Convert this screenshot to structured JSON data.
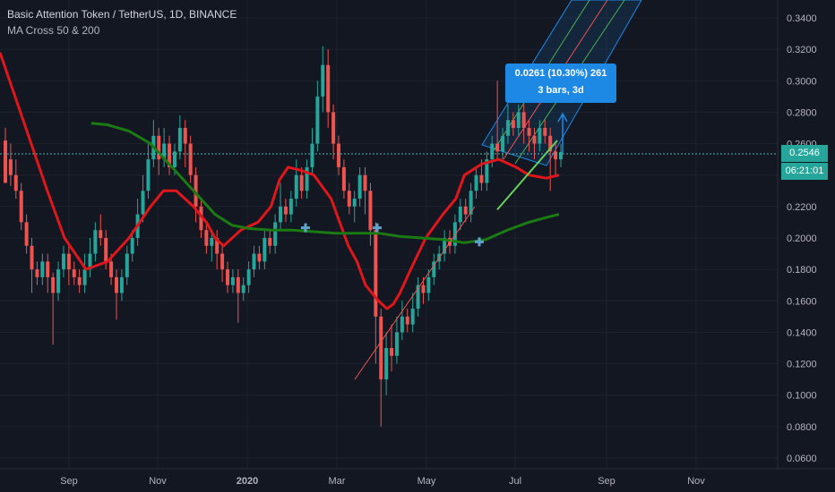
{
  "header": {
    "title": "Basic Attention Token / TetherUS, 1D, BINANCE",
    "indicator": "MA Cross 50 & 200"
  },
  "colors": {
    "background": "#131722",
    "up": "#26a69a",
    "down": "#ef5350",
    "ma50": "#e0161b",
    "ma200": "#1b7a12",
    "measure": "#1e88e5",
    "cross": "#5fa3c9"
  },
  "price_axis": {
    "last_price": "0.2546",
    "countdown": "06:21:01"
  },
  "measure": {
    "line1": "0.0261 (10.30%) 261",
    "line2": "3 bars, 3d"
  },
  "chart_data": {
    "type": "candlestick",
    "symbol": "Basic Attention Token / TetherUS",
    "interval": "1D",
    "exchange": "BINANCE",
    "indicator": "MA Cross 50 & 200",
    "y_ticks": [
      "0.3400",
      "0.3200",
      "0.3000",
      "0.2800",
      "0.2600",
      "0.2400",
      "0.2200",
      "0.2000",
      "0.1800",
      "0.1600",
      "0.1400",
      "0.1200",
      "0.1000",
      "0.0800",
      "0.0600"
    ],
    "x_ticks": [
      "Sep",
      "Nov",
      "2020",
      "Mar",
      "May",
      "Jul",
      "Sep",
      "Nov"
    ],
    "ylim": [
      0.058,
      0.345
    ],
    "grid": true,
    "series": [
      {
        "name": "MA50",
        "points": [
          [
            0.0,
            0.318
          ],
          [
            0.06,
            0.27
          ],
          [
            0.11,
            0.23
          ],
          [
            0.15,
            0.2
          ],
          [
            0.2,
            0.18
          ],
          [
            0.25,
            0.185
          ],
          [
            0.3,
            0.2
          ],
          [
            0.35,
            0.22
          ],
          [
            0.38,
            0.23
          ],
          [
            0.41,
            0.23
          ],
          [
            0.45,
            0.22
          ],
          [
            0.48,
            0.21
          ],
          [
            0.5,
            0.2
          ],
          [
            0.52,
            0.195
          ],
          [
            0.56,
            0.205
          ],
          [
            0.6,
            0.21
          ],
          [
            0.63,
            0.22
          ],
          [
            0.65,
            0.237
          ],
          [
            0.67,
            0.245
          ],
          [
            0.7,
            0.243
          ],
          [
            0.73,
            0.24
          ],
          [
            0.77,
            0.225
          ],
          [
            0.79,
            0.21
          ],
          [
            0.81,
            0.195
          ],
          [
            0.83,
            0.185
          ],
          [
            0.85,
            0.17
          ],
          [
            0.88,
            0.16
          ],
          [
            0.9,
            0.155
          ],
          [
            0.915,
            0.158
          ],
          [
            0.93,
            0.165
          ],
          [
            0.955,
            0.18
          ],
          [
            0.99,
            0.2
          ],
          [
            1.03,
            0.215
          ],
          [
            1.06,
            0.225
          ],
          [
            1.08,
            0.24
          ],
          [
            1.12,
            0.247
          ],
          [
            1.16,
            0.25
          ],
          [
            1.2,
            0.245
          ],
          [
            1.23,
            0.24
          ],
          [
            1.27,
            0.238
          ],
          [
            1.3,
            0.24
          ]
        ]
      },
      {
        "name": "MA200",
        "points": [
          [
            0.212,
            0.273
          ],
          [
            0.25,
            0.272
          ],
          [
            0.3,
            0.268
          ],
          [
            0.35,
            0.26
          ],
          [
            0.4,
            0.245
          ],
          [
            0.45,
            0.23
          ],
          [
            0.5,
            0.215
          ],
          [
            0.54,
            0.208
          ],
          [
            0.58,
            0.206
          ],
          [
            0.63,
            0.205
          ],
          [
            0.68,
            0.205
          ],
          [
            0.73,
            0.204
          ],
          [
            0.78,
            0.203
          ],
          [
            0.83,
            0.203
          ],
          [
            0.88,
            0.203
          ],
          [
            0.93,
            0.201
          ],
          [
            0.98,
            0.2
          ],
          [
            1.03,
            0.199
          ],
          [
            1.08,
            0.197
          ],
          [
            1.13,
            0.199
          ],
          [
            1.18,
            0.205
          ],
          [
            1.23,
            0.21
          ],
          [
            1.27,
            0.213
          ],
          [
            1.3,
            0.215
          ]
        ]
      }
    ],
    "candles": [
      [
        0.262,
        0.235,
        0.27,
        0.25
      ],
      [
        0.25,
        0.24,
        0.26,
        0.233
      ],
      [
        0.24,
        0.23,
        0.25,
        0.225
      ],
      [
        0.23,
        0.21,
        0.235,
        0.205
      ],
      [
        0.21,
        0.195,
        0.215,
        0.19
      ],
      [
        0.195,
        0.18,
        0.2,
        0.165
      ],
      [
        0.18,
        0.175,
        0.185,
        0.17
      ],
      [
        0.175,
        0.185,
        0.19,
        0.17
      ],
      [
        0.185,
        0.175,
        0.19,
        0.165
      ],
      [
        0.175,
        0.165,
        0.178,
        0.132
      ],
      [
        0.165,
        0.18,
        0.185,
        0.16
      ],
      [
        0.18,
        0.19,
        0.195,
        0.175
      ],
      [
        0.19,
        0.18,
        0.195,
        0.17
      ],
      [
        0.18,
        0.175,
        0.185,
        0.17
      ],
      [
        0.175,
        0.17,
        0.18,
        0.165
      ],
      [
        0.17,
        0.18,
        0.19,
        0.165
      ],
      [
        0.18,
        0.19,
        0.2,
        0.175
      ],
      [
        0.19,
        0.205,
        0.21,
        0.185
      ],
      [
        0.205,
        0.2,
        0.215,
        0.195
      ],
      [
        0.2,
        0.185,
        0.205,
        0.18
      ],
      [
        0.185,
        0.175,
        0.19,
        0.17
      ],
      [
        0.175,
        0.165,
        0.18,
        0.148
      ],
      [
        0.165,
        0.175,
        0.18,
        0.16
      ],
      [
        0.175,
        0.19,
        0.195,
        0.17
      ],
      [
        0.19,
        0.2,
        0.205,
        0.185
      ],
      [
        0.2,
        0.215,
        0.225,
        0.195
      ],
      [
        0.215,
        0.23,
        0.24,
        0.21
      ],
      [
        0.23,
        0.25,
        0.26,
        0.225
      ],
      [
        0.25,
        0.265,
        0.275,
        0.245
      ],
      [
        0.265,
        0.25,
        0.27,
        0.24
      ],
      [
        0.25,
        0.26,
        0.27,
        0.245
      ],
      [
        0.26,
        0.245,
        0.265,
        0.24
      ],
      [
        0.245,
        0.255,
        0.26,
        0.24
      ],
      [
        0.255,
        0.27,
        0.278,
        0.25
      ],
      [
        0.27,
        0.26,
        0.275,
        0.245
      ],
      [
        0.26,
        0.24,
        0.265,
        0.235
      ],
      [
        0.24,
        0.22,
        0.245,
        0.21
      ],
      [
        0.22,
        0.205,
        0.225,
        0.2
      ],
      [
        0.205,
        0.195,
        0.21,
        0.19
      ],
      [
        0.195,
        0.2,
        0.205,
        0.185
      ],
      [
        0.2,
        0.19,
        0.205,
        0.18
      ],
      [
        0.19,
        0.18,
        0.195,
        0.172
      ],
      [
        0.18,
        0.17,
        0.185,
        0.165
      ],
      [
        0.17,
        0.175,
        0.18,
        0.165
      ],
      [
        0.175,
        0.165,
        0.18,
        0.146
      ],
      [
        0.165,
        0.17,
        0.175,
        0.16
      ],
      [
        0.17,
        0.18,
        0.185,
        0.165
      ],
      [
        0.18,
        0.19,
        0.195,
        0.175
      ],
      [
        0.19,
        0.185,
        0.195,
        0.18
      ],
      [
        0.185,
        0.2,
        0.205,
        0.18
      ],
      [
        0.2,
        0.195,
        0.205,
        0.19
      ],
      [
        0.195,
        0.21,
        0.215,
        0.19
      ],
      [
        0.21,
        0.22,
        0.235,
        0.205
      ],
      [
        0.22,
        0.215,
        0.225,
        0.21
      ],
      [
        0.215,
        0.225,
        0.23,
        0.21
      ],
      [
        0.225,
        0.24,
        0.25,
        0.22
      ],
      [
        0.24,
        0.23,
        0.245,
        0.225
      ],
      [
        0.23,
        0.245,
        0.25,
        0.225
      ],
      [
        0.245,
        0.26,
        0.27,
        0.24
      ],
      [
        0.26,
        0.29,
        0.3,
        0.255
      ],
      [
        0.29,
        0.31,
        0.322,
        0.28
      ],
      [
        0.31,
        0.28,
        0.32,
        0.27
      ],
      [
        0.28,
        0.26,
        0.285,
        0.25
      ],
      [
        0.26,
        0.245,
        0.265,
        0.24
      ],
      [
        0.245,
        0.23,
        0.25,
        0.225
      ],
      [
        0.23,
        0.22,
        0.235,
        0.215
      ],
      [
        0.22,
        0.225,
        0.23,
        0.21
      ],
      [
        0.225,
        0.24,
        0.245,
        0.22
      ],
      [
        0.24,
        0.23,
        0.245,
        0.215
      ],
      [
        0.23,
        0.205,
        0.235,
        0.195
      ],
      [
        0.205,
        0.15,
        0.21,
        0.12
      ],
      [
        0.15,
        0.11,
        0.155,
        0.08
      ],
      [
        0.11,
        0.13,
        0.14,
        0.1
      ],
      [
        0.13,
        0.125,
        0.145,
        0.115
      ],
      [
        0.125,
        0.14,
        0.15,
        0.12
      ],
      [
        0.14,
        0.15,
        0.16,
        0.135
      ],
      [
        0.15,
        0.145,
        0.155,
        0.14
      ],
      [
        0.145,
        0.155,
        0.165,
        0.14
      ],
      [
        0.155,
        0.17,
        0.175,
        0.15
      ],
      [
        0.17,
        0.165,
        0.175,
        0.158
      ],
      [
        0.165,
        0.175,
        0.18,
        0.16
      ],
      [
        0.175,
        0.185,
        0.19,
        0.17
      ],
      [
        0.185,
        0.19,
        0.195,
        0.18
      ],
      [
        0.19,
        0.2,
        0.205,
        0.185
      ],
      [
        0.2,
        0.195,
        0.205,
        0.19
      ],
      [
        0.195,
        0.21,
        0.215,
        0.19
      ],
      [
        0.21,
        0.22,
        0.225,
        0.205
      ],
      [
        0.22,
        0.215,
        0.225,
        0.21
      ],
      [
        0.215,
        0.23,
        0.235,
        0.21
      ],
      [
        0.23,
        0.24,
        0.245,
        0.225
      ],
      [
        0.24,
        0.235,
        0.25,
        0.23
      ],
      [
        0.235,
        0.25,
        0.255,
        0.23
      ],
      [
        0.25,
        0.26,
        0.265,
        0.245
      ],
      [
        0.26,
        0.255,
        0.3,
        0.25
      ],
      [
        0.255,
        0.265,
        0.27,
        0.25
      ],
      [
        0.265,
        0.275,
        0.285,
        0.26
      ],
      [
        0.275,
        0.27,
        0.28,
        0.265
      ],
      [
        0.27,
        0.28,
        0.285,
        0.265
      ],
      [
        0.28,
        0.27,
        0.285,
        0.26
      ],
      [
        0.27,
        0.265,
        0.275,
        0.255
      ],
      [
        0.265,
        0.26,
        0.27,
        0.25
      ],
      [
        0.26,
        0.27,
        0.275,
        0.255
      ],
      [
        0.27,
        0.265,
        0.275,
        0.26
      ],
      [
        0.265,
        0.255,
        0.27,
        0.23
      ],
      [
        0.255,
        0.25,
        0.26,
        0.24
      ],
      [
        0.25,
        0.2546,
        0.26,
        0.245
      ]
    ]
  }
}
